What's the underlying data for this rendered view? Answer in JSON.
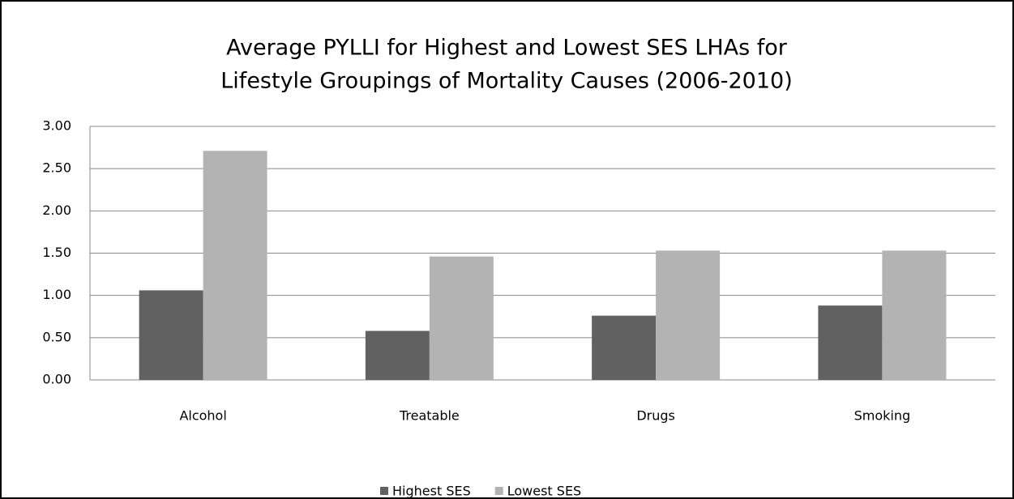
{
  "chart_data": {
    "type": "bar",
    "title": [
      "Average PYLLI for Highest and Lowest SES LHAs for",
      "Lifestyle Groupings of Mortality Causes (2006-2010)"
    ],
    "categories": [
      "Alcohol",
      "Treatable",
      "Drugs",
      "Smoking"
    ],
    "series": [
      {
        "name": "Highest SES",
        "color": "#616161",
        "values": [
          1.06,
          0.58,
          0.76,
          0.88
        ]
      },
      {
        "name": "Lowest SES",
        "color": "#b3b3b3",
        "values": [
          2.71,
          1.46,
          1.53,
          1.53
        ]
      }
    ],
    "ylim": [
      0,
      3
    ],
    "yticks": [
      {
        "value": 0,
        "label": "0.00"
      },
      {
        "value": 0.5,
        "label": "0.50"
      },
      {
        "value": 1,
        "label": "1.00"
      },
      {
        "value": 1.5,
        "label": "1.50"
      },
      {
        "value": 2,
        "label": "2.00"
      },
      {
        "value": 2.5,
        "label": "2.50"
      },
      {
        "value": 3,
        "label": "3.00"
      }
    ],
    "grid": true,
    "legend": "bottom"
  }
}
